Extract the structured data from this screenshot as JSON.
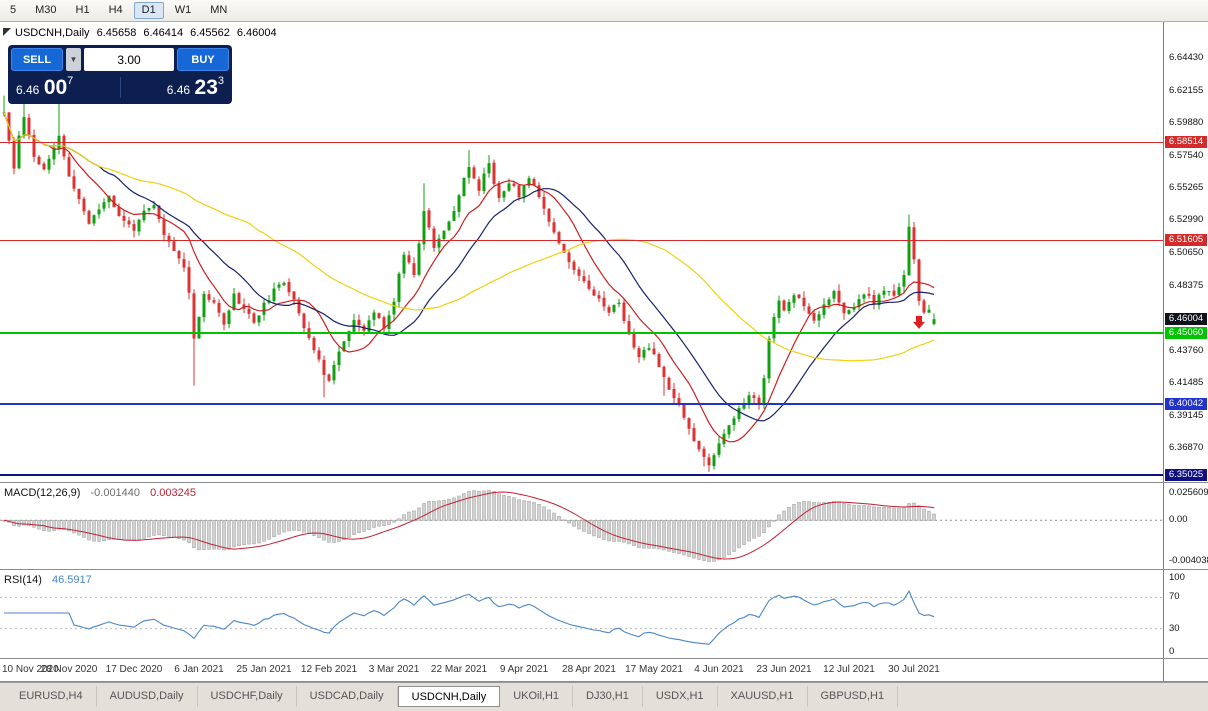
{
  "colors": {
    "candle_up": "#12a012",
    "candle_down": "#dd3333",
    "macd_hist_fill": "#d2d2d2",
    "macd_hist_stroke": "#9b9b9b",
    "macd_signal": "#c02233",
    "rsi_line": "#4a86c8",
    "current_price_badge": "#10131c",
    "buy_sell_button": "#1668d6",
    "trade_panel_bg": "#0d1f4e"
  },
  "toolbar": {
    "timeframes": [
      {
        "label": "5",
        "active": false
      },
      {
        "label": "M30",
        "active": false
      },
      {
        "label": "H1",
        "active": false
      },
      {
        "label": "H4",
        "active": false
      },
      {
        "label": "D1",
        "active": true
      },
      {
        "label": "W1",
        "active": false
      },
      {
        "label": "MN",
        "active": false
      }
    ]
  },
  "chart_header": {
    "symbol": "USDCNH,Daily",
    "open": "6.45658",
    "high": "6.46414",
    "low": "6.45562",
    "close": "6.46004"
  },
  "trade_panel": {
    "sell_label": "SELL",
    "buy_label": "BUY",
    "lot_value": "3.00",
    "sell_price": {
      "prefix": "6.46",
      "big": "00",
      "sup": "7"
    },
    "buy_price": {
      "prefix": "6.46",
      "big": "23",
      "sup": "3"
    }
  },
  "tabs": {
    "items": [
      {
        "label": "EURUSD,H4",
        "active": false
      },
      {
        "label": "AUDUSD,Daily",
        "active": false
      },
      {
        "label": "USDCHF,Daily",
        "active": false
      },
      {
        "label": "USDCAD,Daily",
        "active": false
      },
      {
        "label": "USDCNH,Daily",
        "active": true
      },
      {
        "label": "UKOil,H1",
        "active": false
      },
      {
        "label": "DJ30,H1",
        "active": false
      },
      {
        "label": "USDX,H1",
        "active": false
      },
      {
        "label": "XAUUSD,H1",
        "active": false
      },
      {
        "label": "GBPUSD,H1",
        "active": false
      }
    ]
  },
  "chart_data": {
    "type": "candlestick",
    "symbol": "USDCNH",
    "timeframe": "Daily",
    "grid": false,
    "bar_count": 187,
    "seed": 11,
    "noise": 0.0036,
    "wick": 0.0048,
    "price_axis": {
      "max": 6.67,
      "min": 6.345
    },
    "y_ticks": [
      {
        "label": "6.64430",
        "price": 6.6443
      },
      {
        "label": "6.62155",
        "price": 6.62155
      },
      {
        "label": "6.59880",
        "price": 6.5988
      },
      {
        "label": "6.57540",
        "price": 6.5754
      },
      {
        "label": "6.55265",
        "price": 6.55265
      },
      {
        "label": "6.52990",
        "price": 6.5299
      },
      {
        "label": "6.50650",
        "price": 6.5065
      },
      {
        "label": "6.48375",
        "price": 6.48375
      },
      {
        "label": "6.43760",
        "price": 6.4376
      },
      {
        "label": "6.41485",
        "price": 6.41485
      },
      {
        "label": "6.39145",
        "price": 6.39145
      },
      {
        "label": "6.36870",
        "price": 6.3687
      }
    ],
    "levels": [
      {
        "label": "6.58514",
        "price": 6.58514,
        "color": "#d42a2a",
        "width": 1,
        "line": true
      },
      {
        "label": "6.51605",
        "price": 6.51605,
        "color": "#d42a2a",
        "width": 1,
        "line": true
      },
      {
        "label": "6.46004",
        "price": 6.46004,
        "color": "#10131c",
        "width": 1,
        "line": false
      },
      {
        "label": "6.45060",
        "price": 6.4506,
        "color": "#00c400",
        "width": 2,
        "line": true
      },
      {
        "label": "6.40042",
        "price": 6.40042,
        "color": "#2233cc",
        "width": 2,
        "line": true
      },
      {
        "label": "6.35025",
        "price": 6.35025,
        "color": "#101080",
        "width": 2,
        "line": true
      }
    ],
    "x_labels": [
      {
        "label": "10 Nov 2020",
        "bar": 0
      },
      {
        "label": "28 Nov 2020",
        "bar": 13
      },
      {
        "label": "17 Dec 2020",
        "bar": 26
      },
      {
        "label": "6 Jan 2021",
        "bar": 39
      },
      {
        "label": "25 Jan 2021",
        "bar": 52
      },
      {
        "label": "12 Feb 2021",
        "bar": 65
      },
      {
        "label": "3 Mar 2021",
        "bar": 78
      },
      {
        "label": "22 Mar 2021",
        "bar": 91
      },
      {
        "label": "9 Apr 2021",
        "bar": 104
      },
      {
        "label": "28 Apr 2021",
        "bar": 117
      },
      {
        "label": "17 May 2021",
        "bar": 130
      },
      {
        "label": "4 Jun 2021",
        "bar": 143
      },
      {
        "label": "23 Jun 2021",
        "bar": 156
      },
      {
        "label": "12 Jul 2021",
        "bar": 169
      },
      {
        "label": "30 Jul 2021",
        "bar": 182
      }
    ],
    "close_anchors": [
      [
        0,
        6.606
      ],
      [
        1,
        6.585
      ],
      [
        2,
        6.566
      ],
      [
        3,
        6.59
      ],
      [
        4,
        6.604
      ],
      [
        6,
        6.575
      ],
      [
        8,
        6.565
      ],
      [
        10,
        6.58
      ],
      [
        11,
        6.59
      ],
      [
        13,
        6.56
      ],
      [
        15,
        6.545
      ],
      [
        17,
        6.528
      ],
      [
        19,
        6.538
      ],
      [
        21,
        6.548
      ],
      [
        23,
        6.532
      ],
      [
        26,
        6.524
      ],
      [
        28,
        6.535
      ],
      [
        30,
        6.54
      ],
      [
        32,
        6.52
      ],
      [
        34,
        6.508
      ],
      [
        36,
        6.498
      ],
      [
        37,
        6.478
      ],
      [
        38,
        6.448
      ],
      [
        39,
        6.462
      ],
      [
        40,
        6.478
      ],
      [
        42,
        6.47
      ],
      [
        44,
        6.458
      ],
      [
        46,
        6.477
      ],
      [
        48,
        6.468
      ],
      [
        50,
        6.458
      ],
      [
        52,
        6.47
      ],
      [
        54,
        6.48
      ],
      [
        56,
        6.486
      ],
      [
        58,
        6.475
      ],
      [
        60,
        6.455
      ],
      [
        62,
        6.438
      ],
      [
        64,
        6.422
      ],
      [
        65,
        6.418
      ],
      [
        66,
        6.428
      ],
      [
        68,
        6.445
      ],
      [
        70,
        6.458
      ],
      [
        72,
        6.452
      ],
      [
        74,
        6.465
      ],
      [
        76,
        6.455
      ],
      [
        78,
        6.472
      ],
      [
        79,
        6.492
      ],
      [
        80,
        6.507
      ],
      [
        81,
        6.5
      ],
      [
        82,
        6.492
      ],
      [
        83,
        6.515
      ],
      [
        84,
        6.538
      ],
      [
        85,
        6.525
      ],
      [
        86,
        6.51
      ],
      [
        88,
        6.522
      ],
      [
        90,
        6.538
      ],
      [
        91,
        6.548
      ],
      [
        92,
        6.56
      ],
      [
        93,
        6.568
      ],
      [
        94,
        6.558
      ],
      [
        95,
        6.552
      ],
      [
        96,
        6.562
      ],
      [
        97,
        6.571
      ],
      [
        98,
        6.556
      ],
      [
        99,
        6.546
      ],
      [
        100,
        6.552
      ],
      [
        101,
        6.557
      ],
      [
        103,
        6.548
      ],
      [
        104,
        6.553
      ],
      [
        105,
        6.56
      ],
      [
        106,
        6.556
      ],
      [
        108,
        6.538
      ],
      [
        110,
        6.522
      ],
      [
        112,
        6.508
      ],
      [
        114,
        6.494
      ],
      [
        116,
        6.488
      ],
      [
        117,
        6.483
      ],
      [
        119,
        6.474
      ],
      [
        121,
        6.466
      ],
      [
        123,
        6.472
      ],
      [
        125,
        6.448
      ],
      [
        127,
        6.434
      ],
      [
        129,
        6.44
      ],
      [
        130,
        6.436
      ],
      [
        131,
        6.428
      ],
      [
        132,
        6.418
      ],
      [
        134,
        6.406
      ],
      [
        136,
        6.392
      ],
      [
        138,
        6.374
      ],
      [
        140,
        6.362
      ],
      [
        141,
        6.357
      ],
      [
        142,
        6.365
      ],
      [
        143,
        6.373
      ],
      [
        145,
        6.386
      ],
      [
        147,
        6.396
      ],
      [
        149,
        6.406
      ],
      [
        151,
        6.401
      ],
      [
        152,
        6.418
      ],
      [
        153,
        6.448
      ],
      [
        154,
        6.462
      ],
      [
        155,
        6.472
      ],
      [
        156,
        6.466
      ],
      [
        158,
        6.478
      ],
      [
        160,
        6.471
      ],
      [
        162,
        6.459
      ],
      [
        164,
        6.471
      ],
      [
        166,
        6.479
      ],
      [
        168,
        6.463
      ],
      [
        170,
        6.469
      ],
      [
        172,
        6.479
      ],
      [
        174,
        6.471
      ],
      [
        176,
        6.481
      ],
      [
        178,
        6.476
      ],
      [
        180,
        6.492
      ],
      [
        181,
        6.526
      ],
      [
        182,
        6.502
      ],
      [
        183,
        6.472
      ],
      [
        184,
        6.463
      ],
      [
        185,
        6.468
      ],
      [
        186,
        6.46
      ]
    ],
    "high_overrides": [
      [
        0,
        6.618
      ],
      [
        4,
        6.612
      ],
      [
        11,
        6.614
      ],
      [
        84,
        6.556
      ],
      [
        93,
        6.5795
      ],
      [
        97,
        6.576
      ],
      [
        181,
        6.534
      ]
    ],
    "low_overrides": [
      [
        38,
        6.413
      ],
      [
        64,
        6.405
      ],
      [
        132,
        6.406
      ],
      [
        140,
        6.356
      ],
      [
        141,
        6.3527
      ]
    ],
    "moving_averages": [
      {
        "period": 10,
        "color": "#cc2020"
      },
      {
        "period": 20,
        "color": "#16216b"
      },
      {
        "period": 50,
        "color": "#f2d012"
      }
    ],
    "markers": [
      {
        "bar": 183,
        "price": 6.456,
        "shape": "arrow-down",
        "color": "#e02020"
      }
    ],
    "indicators": {
      "macd": {
        "title": "MACD(12,26,9)",
        "value": "-0.001440",
        "signal_value": "0.003245",
        "fast": 12,
        "slow": 26,
        "signal": 9,
        "axis_labels": [
          "0.025609",
          "0.00",
          "-0.004038"
        ]
      },
      "rsi": {
        "title": "RSI(14)",
        "value": "46.5917",
        "period": 14,
        "levels": [
          70,
          30
        ],
        "axis_labels": [
          "100",
          "70",
          "30",
          "0"
        ],
        "axis_values": [
          100,
          70,
          30,
          0
        ]
      }
    }
  }
}
